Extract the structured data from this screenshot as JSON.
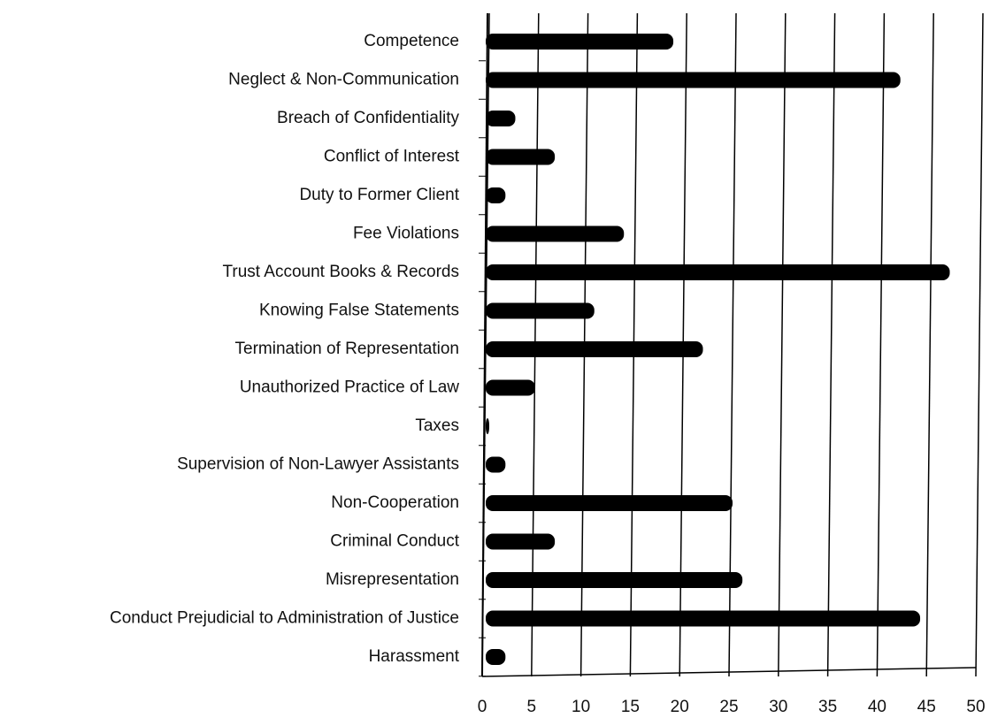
{
  "chart_data": {
    "type": "bar",
    "orientation": "horizontal",
    "categories": [
      "Competence",
      "Neglect & Non-Communication",
      "Breach of Confidentiality",
      "Conflict of Interest",
      "Duty to Former Client",
      "Fee Violations",
      "Trust Account Books & Records",
      "Knowing False Statements",
      "Termination of Representation",
      "Unauthorized Practice of Law",
      "Taxes",
      "Supervision of Non-Lawyer Assistants",
      "Non-Cooperation",
      "Criminal Conduct",
      "Misrepresentation",
      "Conduct Prejudicial to Administration of Justice",
      "Harassment"
    ],
    "values": [
      19,
      42,
      3,
      7,
      2,
      14,
      47,
      11,
      22,
      5,
      0,
      2,
      25,
      7,
      26,
      44,
      2
    ],
    "color": "#000000",
    "xlim": [
      0,
      50
    ],
    "xticks": [
      0,
      5,
      10,
      15,
      20,
      25,
      30,
      35,
      40,
      45,
      50
    ],
    "grid": true
  }
}
